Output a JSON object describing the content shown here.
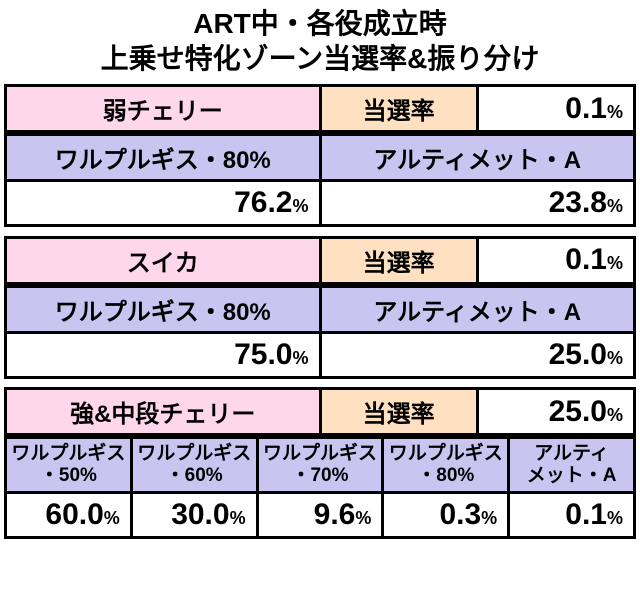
{
  "title_line1": "ART中・各役成立時",
  "title_line2": "上乗せ特化ゾーン当選率&振り分け",
  "colors": {
    "pink": "#ffd7ea",
    "peach": "#ffe1c2",
    "lilac": "#c9c5f0",
    "white": "#ffffff",
    "border": "#000000",
    "text": "#000000"
  },
  "label_win_rate": "当選率",
  "blocks": [
    {
      "role": "弱チェリー",
      "win_rate": "0.1",
      "subs": [
        "ワルプルギス・80%",
        "アルティメット・A"
      ],
      "vals": [
        "76.2",
        "23.8"
      ]
    },
    {
      "role": "スイカ",
      "win_rate": "0.1",
      "subs": [
        "ワルプルギス・80%",
        "アルティメット・A"
      ],
      "vals": [
        "75.0",
        "25.0"
      ]
    }
  ],
  "block3": {
    "role": "強&中段チェリー",
    "win_rate": "25.0",
    "subs": [
      "ワルプルギス\n・50%",
      "ワルプルギス\n・60%",
      "ワルプルギス\n・70%",
      "ワルプルギス\n・80%",
      "アルティ\nメット・A"
    ],
    "vals": [
      "60.0",
      "30.0",
      "9.6",
      "0.3",
      "0.1"
    ]
  },
  "font": {
    "title_size": 28,
    "cell_size": 24,
    "big_pct_size": 30,
    "small_pct_size": 18,
    "multi_header_size": 19,
    "multi_value_size": 26
  }
}
